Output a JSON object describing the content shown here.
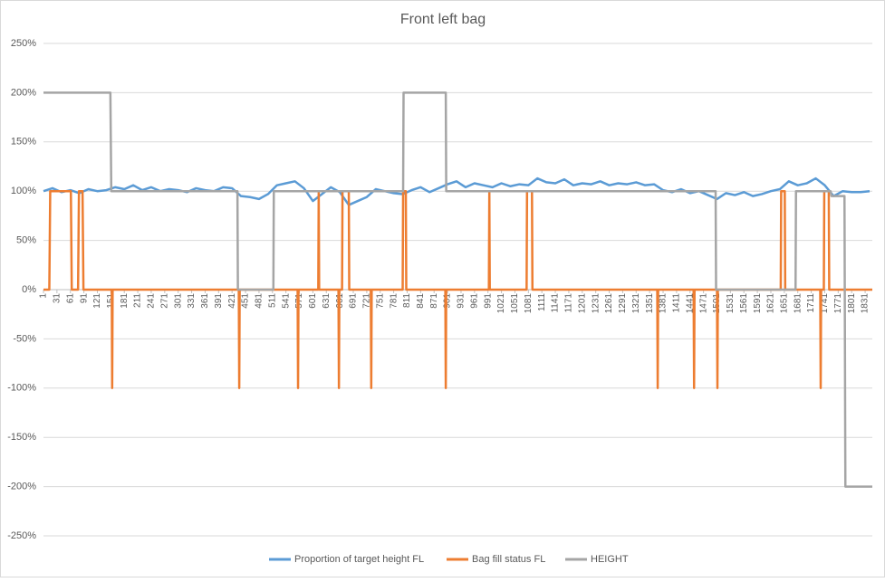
{
  "chart_data": {
    "type": "line",
    "title": "Front left bag",
    "xlim": [
      1,
      1847
    ],
    "xticks": [
      1,
      31,
      61,
      91,
      121,
      151,
      181,
      211,
      241,
      271,
      301,
      331,
      361,
      391,
      421,
      451,
      481,
      511,
      541,
      571,
      601,
      631,
      661,
      691,
      721,
      751,
      781,
      811,
      841,
      871,
      901,
      931,
      961,
      991,
      1021,
      1051,
      1081,
      1111,
      1141,
      1171,
      1201,
      1231,
      1261,
      1291,
      1321,
      1351,
      1381,
      1411,
      1441,
      1471,
      1501,
      1531,
      1561,
      1591,
      1621,
      1651,
      1681,
      1711,
      1741,
      1771,
      1801,
      1831
    ],
    "ylim": [
      -250,
      250
    ],
    "yticks": [
      {
        "value": -250,
        "label": "-250%"
      },
      {
        "value": -200,
        "label": "-200%"
      },
      {
        "value": -150,
        "label": "-150%"
      },
      {
        "value": -100,
        "label": "-100%"
      },
      {
        "value": -50,
        "label": "-50%"
      },
      {
        "value": 0,
        "label": "0%"
      },
      {
        "value": 50,
        "label": "50%"
      },
      {
        "value": 100,
        "label": "100%"
      },
      {
        "value": 150,
        "label": "150%"
      },
      {
        "value": 200,
        "label": "200%"
      },
      {
        "value": 250,
        "label": "250%"
      }
    ],
    "grid": true,
    "legend": "bottom",
    "series": [
      {
        "name": "Proportion of target height FL",
        "color": "#5b9bd5",
        "x": [
          1,
          21,
          41,
          61,
          81,
          101,
          121,
          141,
          161,
          181,
          201,
          221,
          241,
          261,
          281,
          301,
          321,
          341,
          361,
          381,
          401,
          421,
          441,
          461,
          481,
          501,
          521,
          541,
          561,
          581,
          601,
          621,
          641,
          661,
          681,
          701,
          721,
          741,
          761,
          781,
          801,
          821,
          841,
          861,
          881,
          901,
          921,
          941,
          961,
          981,
          1001,
          1021,
          1041,
          1061,
          1081,
          1101,
          1121,
          1141,
          1161,
          1181,
          1201,
          1221,
          1241,
          1261,
          1281,
          1301,
          1321,
          1341,
          1361,
          1381,
          1401,
          1421,
          1441,
          1461,
          1481,
          1501,
          1521,
          1541,
          1561,
          1581,
          1601,
          1621,
          1641,
          1661,
          1681,
          1701,
          1721,
          1741,
          1761,
          1781,
          1801,
          1821,
          1841
        ],
        "values": [
          100,
          103,
          99,
          101,
          98,
          102,
          100,
          101,
          104,
          102,
          106,
          101,
          104,
          100,
          102,
          101,
          99,
          103,
          101,
          100,
          104,
          103,
          95,
          94,
          92,
          97,
          106,
          108,
          110,
          103,
          90,
          97,
          104,
          99,
          86,
          90,
          94,
          102,
          100,
          98,
          97,
          101,
          104,
          99,
          103,
          107,
          110,
          104,
          108,
          106,
          104,
          108,
          105,
          107,
          106,
          113,
          109,
          108,
          112,
          106,
          108,
          107,
          110,
          106,
          108,
          107,
          109,
          106,
          107,
          101,
          99,
          102,
          98,
          100,
          96,
          92,
          98,
          96,
          99,
          95,
          97,
          100,
          102,
          110,
          106,
          108,
          113,
          106,
          95,
          100,
          99,
          99,
          100
        ]
      },
      {
        "name": "Bag fill status FL",
        "color": "#ed7d31",
        "x": [
          1,
          14,
          16,
          62,
          64,
          78,
          80,
          88,
          90,
          153,
          154,
          155,
          436,
          437,
          438,
          567,
          568,
          569,
          613,
          614,
          615,
          658,
          659,
          660,
          666,
          667,
          681,
          682,
          730,
          731,
          732,
          801,
          802,
          808,
          809,
          896,
          897,
          898,
          993,
          994,
          995,
          1077,
          1078,
          1089,
          1090,
          1368,
          1369,
          1370,
          1449,
          1450,
          1451,
          1501,
          1502,
          1503,
          1643,
          1644,
          1652,
          1653,
          1731,
          1732,
          1733,
          1739,
          1740,
          1750,
          1751,
          1847
        ],
        "values": [
          0,
          0,
          100,
          100,
          0,
          0,
          100,
          100,
          0,
          0,
          -100,
          0,
          0,
          -100,
          0,
          0,
          -100,
          0,
          0,
          100,
          0,
          0,
          -100,
          0,
          0,
          100,
          100,
          0,
          0,
          -100,
          0,
          0,
          100,
          100,
          0,
          0,
          -100,
          0,
          0,
          100,
          0,
          0,
          100,
          100,
          0,
          0,
          -100,
          0,
          0,
          -100,
          0,
          0,
          -100,
          0,
          0,
          100,
          100,
          0,
          0,
          -100,
          0,
          0,
          100,
          100,
          0,
          0
        ]
      },
      {
        "name": "HEIGHT",
        "color": "#a5a5a5",
        "x": [
          1,
          150,
          152,
          433,
          434,
          513,
          514,
          802,
          803,
          897,
          898,
          1498,
          1499,
          1676,
          1677,
          1754,
          1756,
          1785,
          1787,
          1847
        ],
        "values": [
          200,
          200,
          100,
          100,
          0,
          0,
          100,
          100,
          200,
          200,
          100,
          100,
          0,
          0,
          100,
          100,
          95,
          95,
          -200,
          -200
        ]
      }
    ]
  }
}
